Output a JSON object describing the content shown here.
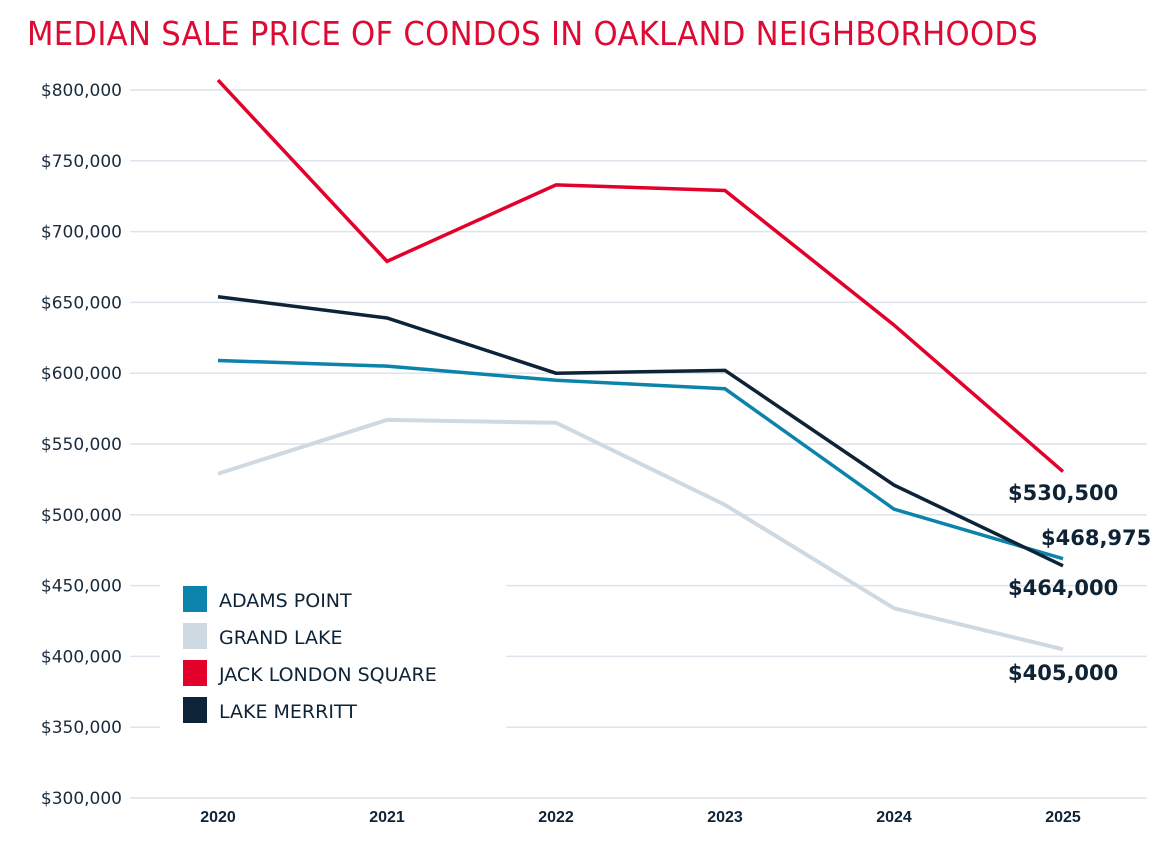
{
  "chart_data": {
    "type": "line",
    "title": "MEDIAN SALE PRICE OF CONDOS IN OAKLAND NEIGHBORHOODS",
    "xlabel": "",
    "ylabel": "",
    "x": [
      "2020",
      "2021",
      "2022",
      "2023",
      "2024",
      "2025"
    ],
    "ylim": [
      300000,
      800000
    ],
    "yticks": [
      300000,
      350000,
      400000,
      450000,
      500000,
      550000,
      600000,
      650000,
      700000,
      750000,
      800000
    ],
    "ytick_labels": [
      "$300,000",
      "$350,000",
      "$400,000",
      "$450,000",
      "$500,000",
      "$550,000",
      "$600,000",
      "$650,000",
      "$700,000",
      "$750,000",
      "$800,000"
    ],
    "grid": true,
    "legend_position": "bottom-left",
    "series": [
      {
        "name": "ADAMS POINT",
        "color": "#0b83aa",
        "values": [
          609000,
          605000,
          595000,
          589000,
          504000,
          468975
        ]
      },
      {
        "name": "GRAND LAKE",
        "color": "#cfd9e2",
        "values": [
          529000,
          567000,
          565000,
          507000,
          434000,
          405000
        ]
      },
      {
        "name": "JACK LONDON SQUARE",
        "color": "#e3002b",
        "values": [
          807000,
          679000,
          733000,
          729000,
          634000,
          530500
        ]
      },
      {
        "name": "LAKE MERRITT",
        "color": "#0d2337",
        "values": [
          654000,
          639000,
          600000,
          602000,
          521000,
          464000
        ]
      }
    ],
    "end_labels": [
      {
        "series": "JACK LONDON SQUARE",
        "text": "$530,500"
      },
      {
        "series": "ADAMS POINT",
        "text": "$468,975"
      },
      {
        "series": "LAKE MERRITT",
        "text": "$464,000"
      },
      {
        "series": "GRAND LAKE",
        "text": "$405,000"
      }
    ]
  }
}
